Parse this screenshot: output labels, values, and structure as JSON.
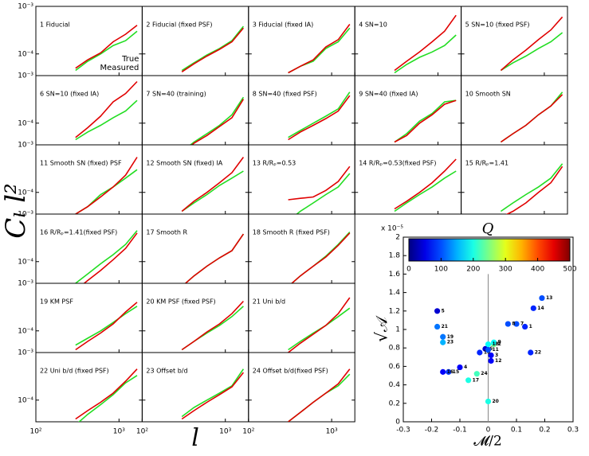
{
  "chart_data": [
    {
      "type": "panel-grid",
      "ylabel": "Cₗ l²",
      "xlabel": "l",
      "log_scale": true,
      "x": [
        300,
        420,
        600,
        850,
        1200,
        1650
      ],
      "xlim": [
        100,
        1900
      ],
      "ylim": [
        3.5e-05,
        0.001
      ],
      "xticks": [
        {
          "value": 100,
          "label": "10²"
        },
        {
          "value": 1000,
          "label": "10³"
        }
      ],
      "yticks": [
        {
          "value": 0.001,
          "label": "10⁻³"
        },
        {
          "value": 0.0001,
          "label": "10⁻⁴"
        }
      ],
      "series_style": [
        {
          "name": "True",
          "color": "#22dd22"
        },
        {
          "name": "Measured",
          "color": "#e00000"
        }
      ],
      "panels": [
        {
          "title": "1 Fiducial",
          "series": [
            {
              "values": [
                4.5e-05,
                7e-05,
                0.0001,
                0.00015,
                0.00019,
                0.0003
              ]
            },
            {
              "values": [
                5e-05,
                7.5e-05,
                0.000105,
                0.00018,
                0.00026,
                0.0004
              ]
            }
          ]
        },
        {
          "title": "2 Fiducial (fixed PSF)",
          "series": [
            {
              "values": [
                4.5e-05,
                6.5e-05,
                9.5e-05,
                0.00013,
                0.00019,
                0.00038
              ]
            },
            {
              "values": [
                4.2e-05,
                6.2e-05,
                9e-05,
                0.000125,
                0.00018,
                0.00035
              ]
            }
          ]
        },
        {
          "title": "3 Fiducial (fixed IA)",
          "series": [
            {
              "values": [
                4e-05,
                5.5e-05,
                7e-05,
                0.00013,
                0.00018,
                0.00035
              ]
            },
            {
              "values": [
                4e-05,
                5.5e-05,
                7.5e-05,
                0.00014,
                0.0002,
                0.00042
              ]
            }
          ]
        },
        {
          "title": "4 SN=10",
          "series": [
            {
              "values": [
                4e-05,
                6e-05,
                8.5e-05,
                0.00011,
                0.00015,
                0.00025
              ]
            },
            {
              "values": [
                4.5e-05,
                7e-05,
                0.00011,
                0.00018,
                0.0003,
                0.00065
              ]
            }
          ]
        },
        {
          "title": "5 SN=10 (fixed PSF)",
          "series": [
            {
              "values": [
                4.5e-05,
                6.5e-05,
                9e-05,
                0.00013,
                0.00018,
                0.00028
              ]
            },
            {
              "values": [
                4.5e-05,
                7.5e-05,
                0.00012,
                0.0002,
                0.00032,
                0.0006
              ]
            }
          ]
        },
        {
          "title": "6 SN=10 (fixed IA)",
          "series": [
            {
              "values": [
                4.5e-05,
                6.5e-05,
                9e-05,
                0.00013,
                0.00018,
                0.0003
              ]
            },
            {
              "values": [
                5e-05,
                8e-05,
                0.00014,
                0.00028,
                0.00042,
                0.00075
              ]
            }
          ]
        },
        {
          "title": "7 SN=40 (training)",
          "series": [
            {
              "values": [
                2.5e-05,
                4e-05,
                6e-05,
                9e-05,
                0.00015,
                0.00035
              ]
            },
            {
              "values": [
                2.2e-05,
                3.8e-05,
                5.5e-05,
                8.5e-05,
                0.00013,
                0.00032
              ]
            }
          ]
        },
        {
          "title": "8 SN=40 (fixed PSF)",
          "series": [
            {
              "values": [
                5e-05,
                7e-05,
                0.0001,
                0.00014,
                0.0002,
                0.00045
              ]
            },
            {
              "values": [
                4.5e-05,
                6.5e-05,
                9e-05,
                0.000125,
                0.00018,
                0.00038
              ]
            }
          ]
        },
        {
          "title": "9 SN=40 (fixed IA)",
          "series": [
            {
              "values": [
                4e-05,
                6e-05,
                0.00011,
                0.00016,
                0.00028,
                0.0003
              ]
            },
            {
              "values": [
                4e-05,
                5.5e-05,
                0.0001,
                0.00015,
                0.00025,
                0.0003
              ]
            }
          ]
        },
        {
          "title": "10 Smooth SN",
          "series": [
            {
              "values": [
                4e-05,
                6e-05,
                9e-05,
                0.00015,
                0.00023,
                0.00045
              ]
            },
            {
              "values": [
                4e-05,
                6e-05,
                9e-05,
                0.00015,
                0.00023,
                0.0004
              ]
            }
          ]
        },
        {
          "title": "11 Smooth SN (fixed) PSF",
          "series": [
            {
              "values": [
                3.5e-05,
                5e-05,
                9e-05,
                0.00013,
                0.0002,
                0.0003
              ]
            },
            {
              "values": [
                3.5e-05,
                5e-05,
                8e-05,
                0.00013,
                0.00023,
                0.00055
              ]
            }
          ]
        },
        {
          "title": "12 Smooth SN (fixed) IA",
          "series": [
            {
              "values": [
                4e-05,
                6e-05,
                9e-05,
                0.00014,
                0.0002,
                0.00028
              ]
            },
            {
              "values": [
                4e-05,
                6.5e-05,
                0.0001,
                0.00016,
                0.00026,
                0.00055
              ]
            }
          ]
        },
        {
          "title": "13 R/Rₚ=0.53",
          "series": [
            {
              "values": [
                2.5e-05,
                4e-05,
                6e-05,
                9e-05,
                0.00013,
                0.00025
              ]
            },
            {
              "values": [
                7e-05,
                7.5e-05,
                8e-05,
                0.00011,
                0.00017,
                0.00035
              ]
            }
          ]
        },
        {
          "title": "14 R/Rₚ=0.53(fixed PSF)",
          "series": [
            {
              "values": [
                4e-05,
                6e-05,
                9e-05,
                0.00013,
                0.0002,
                0.00028
              ]
            },
            {
              "values": [
                4.5e-05,
                6.5e-05,
                0.0001,
                0.00016,
                0.00028,
                0.0005
              ]
            }
          ]
        },
        {
          "title": "15 R/Rₚ=1.41",
          "series": [
            {
              "values": [
                4e-05,
                6e-05,
                9e-05,
                0.00013,
                0.0002,
                0.0004
              ]
            },
            {
              "values": [
                3e-05,
                4e-05,
                6e-05,
                0.0001,
                0.00016,
                0.00035
              ]
            }
          ]
        },
        {
          "title": "16 R/Rₚ=1.41(fixed PSF)",
          "series": [
            {
              "values": [
                3.5e-05,
                5.5e-05,
                9e-05,
                0.00014,
                0.00023,
                0.00045
              ]
            },
            {
              "values": [
                2.5e-05,
                4e-05,
                6.5e-05,
                0.00011,
                0.00019,
                0.0004
              ]
            }
          ]
        },
        {
          "title": "17 Smooth R",
          "series": [
            {
              "values": [
                3e-05,
                5e-05,
                8e-05,
                0.00012,
                0.00017,
                0.00038
              ]
            },
            {
              "values": [
                3e-05,
                5e-05,
                8e-05,
                0.00012,
                0.00017,
                0.00038
              ]
            }
          ]
        },
        {
          "title": "18 Smooth R (fixed PSF)",
          "series": [
            {
              "values": [
                3e-05,
                5e-05,
                8e-05,
                0.00013,
                0.00023,
                0.00042
              ]
            },
            {
              "values": [
                3e-05,
                5e-05,
                8e-05,
                0.000125,
                0.00022,
                0.0004
              ]
            }
          ]
        },
        {
          "title": "19 KM PSF",
          "series": [
            {
              "values": [
                5e-05,
                7e-05,
                0.0001,
                0.00015,
                0.00023,
                0.00033
              ]
            },
            {
              "values": [
                4e-05,
                6e-05,
                9e-05,
                0.00014,
                0.00025,
                0.0004
              ]
            }
          ]
        },
        {
          "title": "20 KM PSF (fixed PSF)",
          "series": [
            {
              "values": [
                4e-05,
                6e-05,
                9e-05,
                0.00013,
                0.0002,
                0.00033
              ]
            },
            {
              "values": [
                4e-05,
                6e-05,
                9.5e-05,
                0.00014,
                0.00023,
                0.00042
              ]
            }
          ]
        },
        {
          "title": "21 Uni b/d",
          "series": [
            {
              "values": [
                4e-05,
                6e-05,
                9e-05,
                0.00013,
                0.0002,
                0.0003
              ]
            },
            {
              "values": [
                3.5e-05,
                5.5e-05,
                8.5e-05,
                0.00013,
                0.00023,
                0.0005
              ]
            }
          ]
        },
        {
          "title": "22 Uni b/d (fixed PSF)",
          "series": [
            {
              "values": [
                3e-05,
                5e-05,
                8e-05,
                0.00013,
                0.00023,
                0.00033
              ]
            },
            {
              "values": [
                4e-05,
                6e-05,
                9e-05,
                0.00014,
                0.00025,
                0.00045
              ]
            }
          ]
        },
        {
          "title": "23 Offset b/d",
          "series": [
            {
              "values": [
                4.5e-05,
                7e-05,
                0.0001,
                0.00014,
                0.0002,
                0.00045
              ]
            },
            {
              "values": [
                4e-05,
                6e-05,
                9e-05,
                0.00013,
                0.00019,
                0.00038
              ]
            }
          ]
        },
        {
          "title": "24 Offset b/d(fixed PSF)",
          "series": [
            {
              "values": [
                3.5e-05,
                5.5e-05,
                9e-05,
                0.00014,
                0.0002,
                0.00035
              ]
            },
            {
              "values": [
                3.5e-05,
                5.5e-05,
                9e-05,
                0.00014,
                0.00022,
                0.00045
              ]
            }
          ]
        }
      ]
    },
    {
      "type": "scatter",
      "xlabel": "𝓜/2",
      "ylabel": "√𝒜",
      "y_multiplier": "x 10⁻⁵",
      "colorbar_label": "Q",
      "colormap": "jet",
      "xlim": [
        -0.3,
        0.3
      ],
      "xticks": [
        -0.3,
        -0.2,
        -0.1,
        0,
        0.1,
        0.2,
        0.3
      ],
      "ylim": [
        0,
        2
      ],
      "yticks": [
        0,
        0.2,
        0.4,
        0.6,
        0.8,
        1,
        1.2,
        1.4,
        1.6,
        1.8,
        2
      ],
      "clim": [
        0,
        500
      ],
      "cticks": [
        0,
        100,
        200,
        300,
        400,
        500
      ],
      "vline": 0,
      "labels": [
        "1",
        "2",
        "3",
        "4",
        "5",
        "6",
        "7",
        "8",
        "9",
        "10",
        "11",
        "12",
        "13",
        "14",
        "15",
        "16",
        "17",
        "18",
        "19",
        "20",
        "21",
        "22",
        "23",
        "24"
      ],
      "x": [
        0.13,
        0.02,
        0.01,
        -0.1,
        -0.18,
        -0.01,
        0.1,
        0.07,
        0.02,
        -0.03,
        0.0,
        0.01,
        0.19,
        0.16,
        -0.14,
        -0.16,
        -0.07,
        0.0,
        -0.16,
        0.0,
        -0.18,
        0.15,
        -0.16,
        -0.04
      ],
      "y": [
        1.03,
        0.84,
        0.72,
        0.59,
        1.2,
        0.79,
        1.06,
        1.06,
        0.86,
        0.75,
        0.78,
        0.66,
        1.34,
        1.23,
        0.54,
        0.54,
        0.45,
        0.84,
        0.92,
        0.22,
        1.03,
        0.75,
        0.86,
        0.52
      ],
      "q": [
        80,
        240,
        60,
        60,
        40,
        40,
        100,
        100,
        190,
        80,
        100,
        60,
        100,
        80,
        90,
        60,
        200,
        190,
        120,
        200,
        120,
        80,
        150,
        220
      ]
    }
  ]
}
